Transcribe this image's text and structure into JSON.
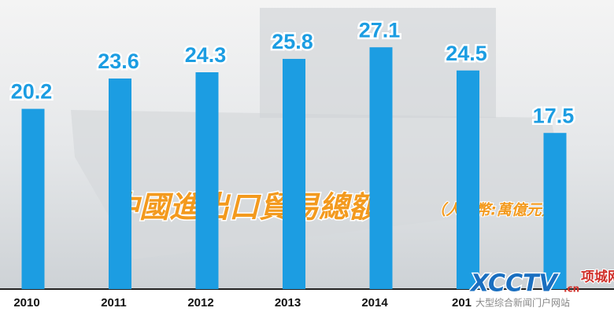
{
  "chart_data": {
    "type": "bar",
    "title": "中國進出口貿易總額",
    "subtitle": "（人民幣:萬億元）",
    "categories": [
      "2010",
      "2011",
      "2012",
      "2013",
      "2014",
      "201",
      null
    ],
    "values": [
      20.2,
      23.6,
      24.3,
      25.8,
      27.1,
      24.5,
      17.5
    ],
    "color": "#1c9de2",
    "ylim": [
      0,
      32.4
    ],
    "watermark": {
      "logo": "XCCTV",
      "domain": ".cn",
      "site": "项城网",
      "slogan": "大型综合新闻门户网站"
    }
  }
}
